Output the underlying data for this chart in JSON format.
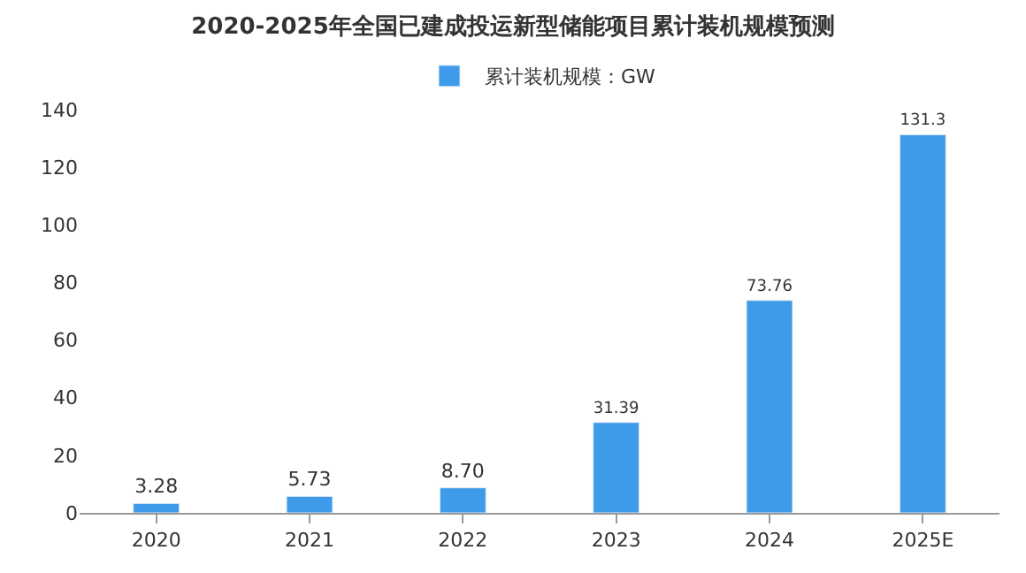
{
  "chart_data": {
    "type": "bar",
    "title": "2020-2025年全国已建成投运新型储能项目累计装机规模预测",
    "categories": [
      "2020",
      "2021",
      "2022",
      "2023",
      "2024",
      "2025E"
    ],
    "series": [
      {
        "name": "累计装机规模：GW",
        "color": "#3d9be9",
        "values": [
          3.28,
          5.73,
          8.7,
          31.39,
          73.76,
          131.3
        ],
        "value_labels": [
          "3.28",
          "5.73",
          "8.70",
          "31.39",
          "73.76",
          "131.3"
        ]
      }
    ],
    "ylim": [
      0,
      140
    ],
    "yticks": [
      0,
      20,
      40,
      60,
      80,
      100,
      120,
      140
    ],
    "grid": false,
    "legend": "top"
  }
}
